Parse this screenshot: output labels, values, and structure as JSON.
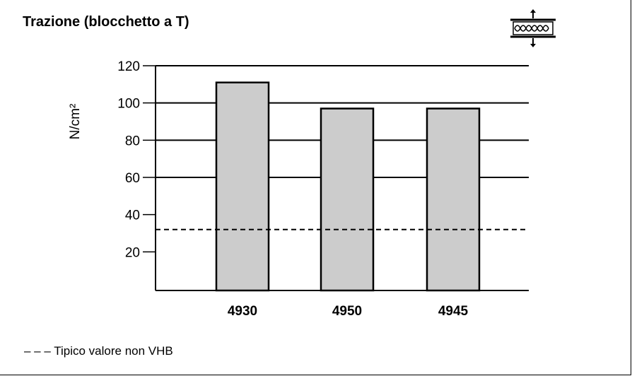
{
  "title": "Trazione (blocchetto a T)",
  "legend_note": "– – – Tipico valore non VHB",
  "icon": "t-block-tape-sample-icon",
  "chart_data": {
    "type": "bar",
    "title": "Trazione (blocchetto a T)",
    "ylabel": "N/cm²",
    "xlabel": "",
    "categories": [
      "4930",
      "4950",
      "4945"
    ],
    "values": [
      111,
      97,
      97
    ],
    "yticks": [
      20,
      40,
      60,
      80,
      100,
      120
    ],
    "ylim": [
      0,
      120
    ],
    "grid": true,
    "bar_color": "#cccccc",
    "reference_line": {
      "value": 32,
      "label": "Tipico valore non VHB",
      "style": "dashed"
    }
  }
}
